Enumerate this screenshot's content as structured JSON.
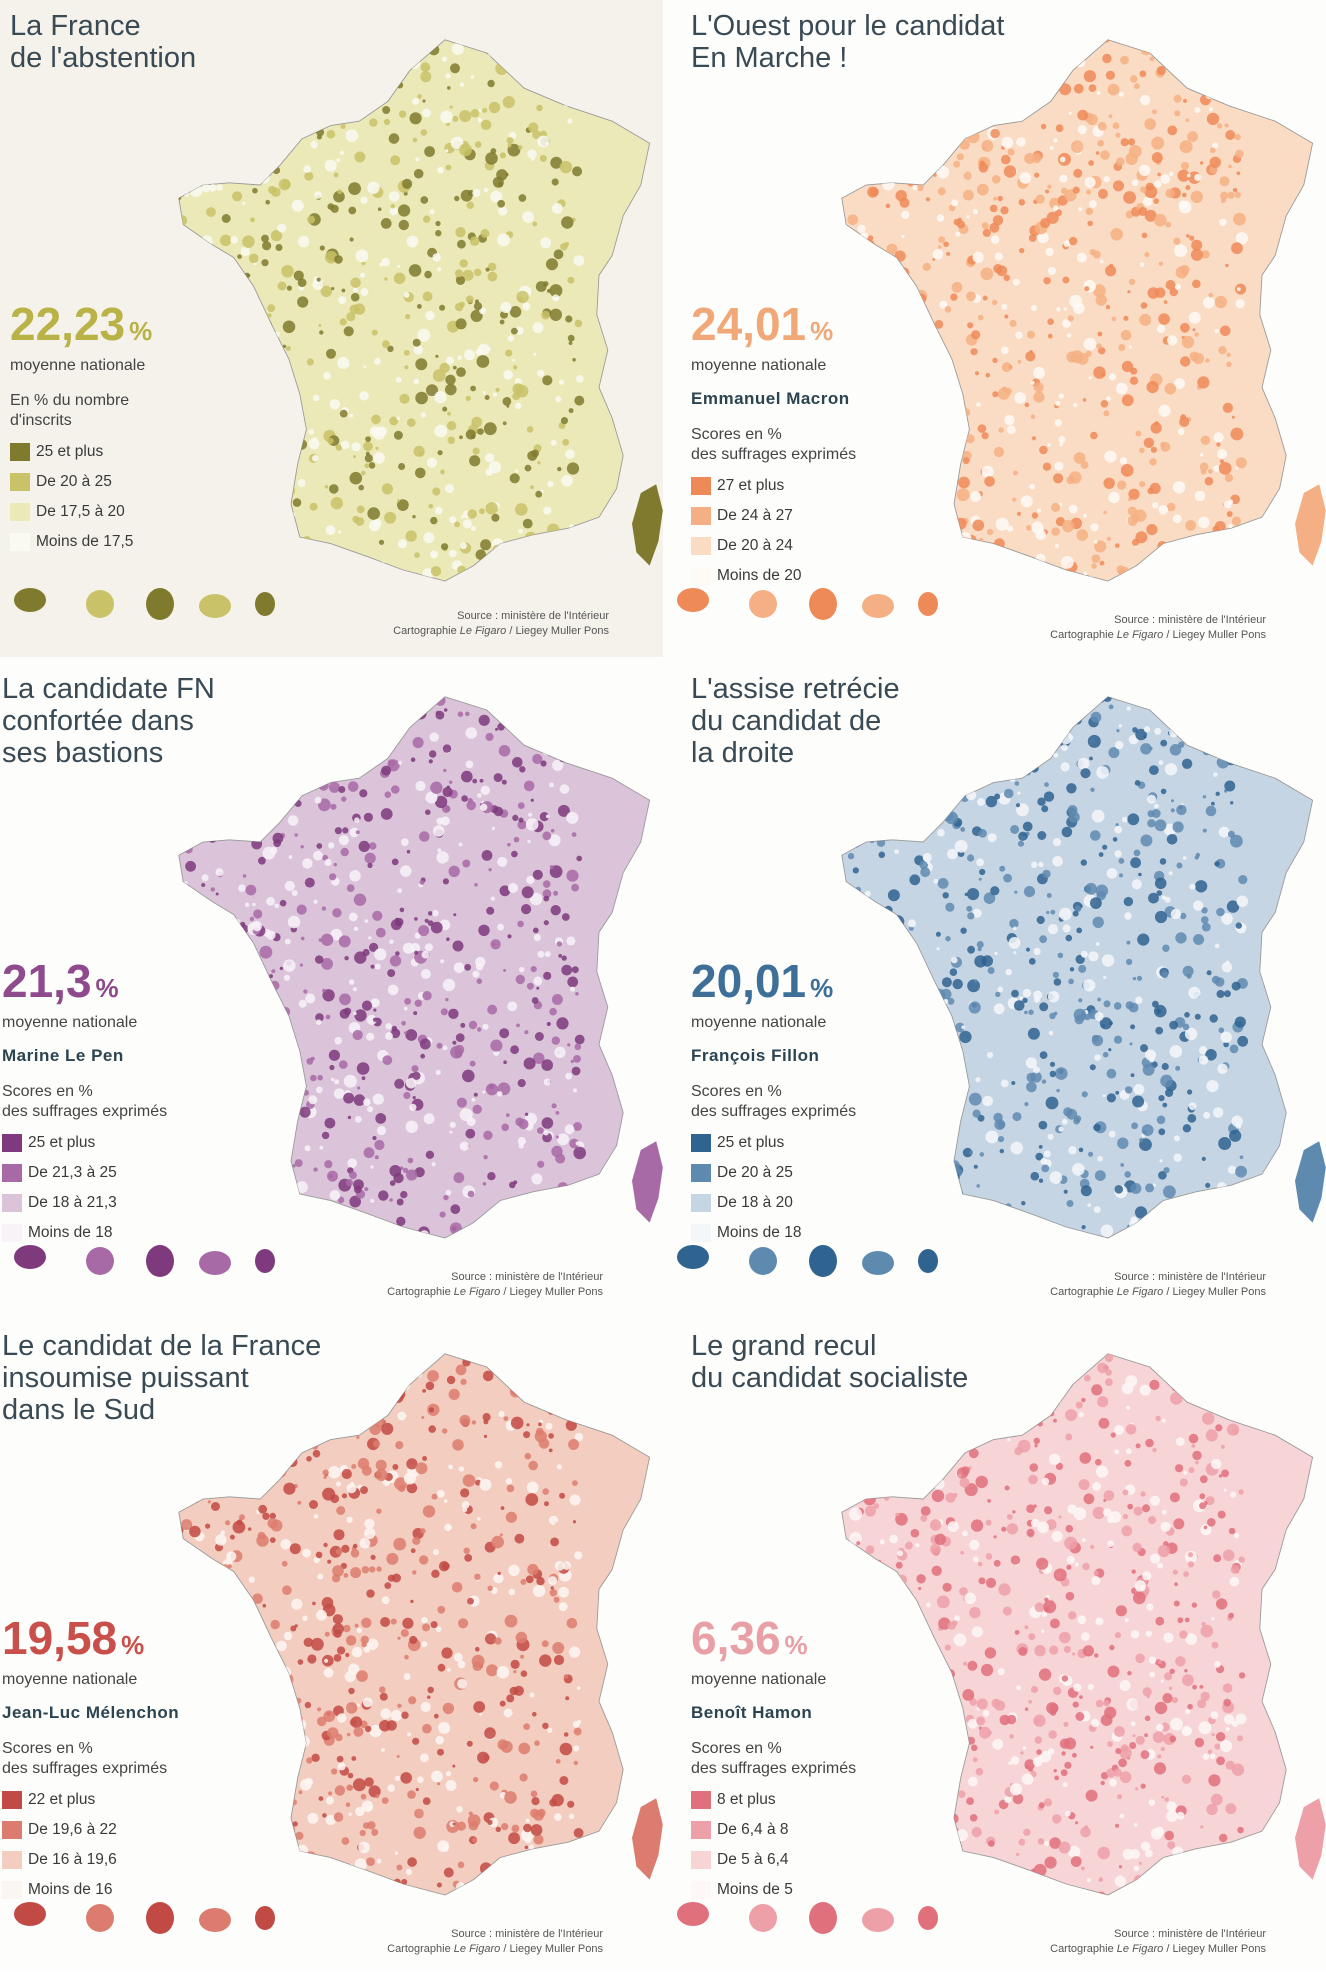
{
  "panels": [
    {
      "title": "La France\nde l'abstention",
      "national_average": "22,23",
      "percent_sign": "%",
      "average_label": "moyenne nationale",
      "candidate": "",
      "unit_label": "En % du nombre\nd'inscrits",
      "accent_color": "#b9b247",
      "legend": [
        {
          "label": "25 et plus",
          "color": "#807a2e"
        },
        {
          "label": "De 20 à 25",
          "color": "#c9c268"
        },
        {
          "label": "De 17,5 à 20",
          "color": "#ece9b8"
        },
        {
          "label": "Moins de 17,5",
          "color": "#fafaf2"
        }
      ],
      "source": "Source : ministère de l'Intérieur",
      "credit_prefix": "Cartographie",
      "credit_paper": "Le Figaro",
      "credit_suffix": "/ Liegey Muller Pons"
    },
    {
      "title": "L'Ouest pour le candidat\nEn Marche !",
      "national_average": "24,01",
      "percent_sign": "%",
      "average_label": "moyenne nationale",
      "candidate": "Emmanuel Macron",
      "unit_label": "Scores en %\ndes suffrages exprimés",
      "accent_color": "#f0a878",
      "legend": [
        {
          "label": "27 et plus",
          "color": "#ee8a58"
        },
        {
          "label": "De 24 à 27",
          "color": "#f4b084"
        },
        {
          "label": "De 20 à 24",
          "color": "#fadcc4"
        },
        {
          "label": "Moins de 20",
          "color": "#fefaf6"
        }
      ],
      "source": "Source : ministère de l'Intérieur",
      "credit_prefix": "Cartographie",
      "credit_paper": "Le Figaro",
      "credit_suffix": "/ Liegey Muller Pons"
    },
    {
      "title": "La candidate FN\nconfortée dans\nses bastions",
      "national_average": "21,3",
      "percent_sign": "%",
      "average_label": "moyenne nationale",
      "candidate": "Marine Le Pen",
      "unit_label": "Scores en %\ndes suffrages exprimés",
      "accent_color": "#8e4a8c",
      "legend": [
        {
          "label": "25 et plus",
          "color": "#7e3a7c"
        },
        {
          "label": "De 21,3 à 25",
          "color": "#a86aa6"
        },
        {
          "label": "De 18 à 21,3",
          "color": "#dbc4da"
        },
        {
          "label": "Moins de 18",
          "color": "#f8f3f8"
        }
      ],
      "source": "Source : ministère de l'Intérieur",
      "credit_prefix": "Cartographie",
      "credit_paper": "Le Figaro",
      "credit_suffix": "/ Liegey Muller Pons"
    },
    {
      "title": "L'assise retrécie\ndu candidat de\nla droite",
      "national_average": "20,01",
      "percent_sign": "%",
      "average_label": "moyenne nationale",
      "candidate": "François Fillon",
      "unit_label": "Scores en %\ndes suffrages exprimés",
      "accent_color": "#3d6f98",
      "legend": [
        {
          "label": "25 et plus",
          "color": "#2f6390"
        },
        {
          "label": "De 20 à 25",
          "color": "#5f8ab0"
        },
        {
          "label": "De 18 à 20",
          "color": "#c6d5e4"
        },
        {
          "label": "Moins de 18",
          "color": "#f4f7fa"
        }
      ],
      "source": "Source : ministère de l'Intérieur",
      "credit_prefix": "Cartographie",
      "credit_paper": "Le Figaro",
      "credit_suffix": "/ Liegey Muller Pons"
    },
    {
      "title": "Le candidat de la France\ninsoumise puissant\ndans le Sud",
      "national_average": "19,58",
      "percent_sign": "%",
      "average_label": "moyenne nationale",
      "candidate": "Jean-Luc Mélenchon",
      "unit_label": "Scores en %\ndes suffrages exprimés",
      "accent_color": "#c9504a",
      "legend": [
        {
          "label": "22 et plus",
          "color": "#c24a44"
        },
        {
          "label": "De 19,6 à 22",
          "color": "#dc7c6e"
        },
        {
          "label": "De 16 à 19,6",
          "color": "#f3cdbf"
        },
        {
          "label": "Moins de 16",
          "color": "#fcf6f2"
        }
      ],
      "source": "Source : ministère de l'Intérieur",
      "credit_prefix": "Cartographie",
      "credit_paper": "Le Figaro",
      "credit_suffix": "/ Liegey Muller Pons"
    },
    {
      "title": "Le grand recul\ndu candidat socialiste",
      "national_average": "6,36",
      "percent_sign": "%",
      "average_label": "moyenne nationale",
      "candidate": "Benoît Hamon",
      "unit_label": "Scores en %\ndes suffrages exprimés",
      "accent_color": "#e8a0a6",
      "legend": [
        {
          "label": "8 et plus",
          "color": "#e0707c"
        },
        {
          "label": "De 6,4 à 8",
          "color": "#eda0a8"
        },
        {
          "label": "De 5 à 6,4",
          "color": "#f7d4d6"
        },
        {
          "label": "Moins de 5",
          "color": "#fdf7f7"
        }
      ],
      "source": "Source : ministère de l'Intérieur",
      "credit_prefix": "Cartographie",
      "credit_paper": "Le Figaro",
      "credit_suffix": "/ Liegey Muller Pons"
    }
  ]
}
